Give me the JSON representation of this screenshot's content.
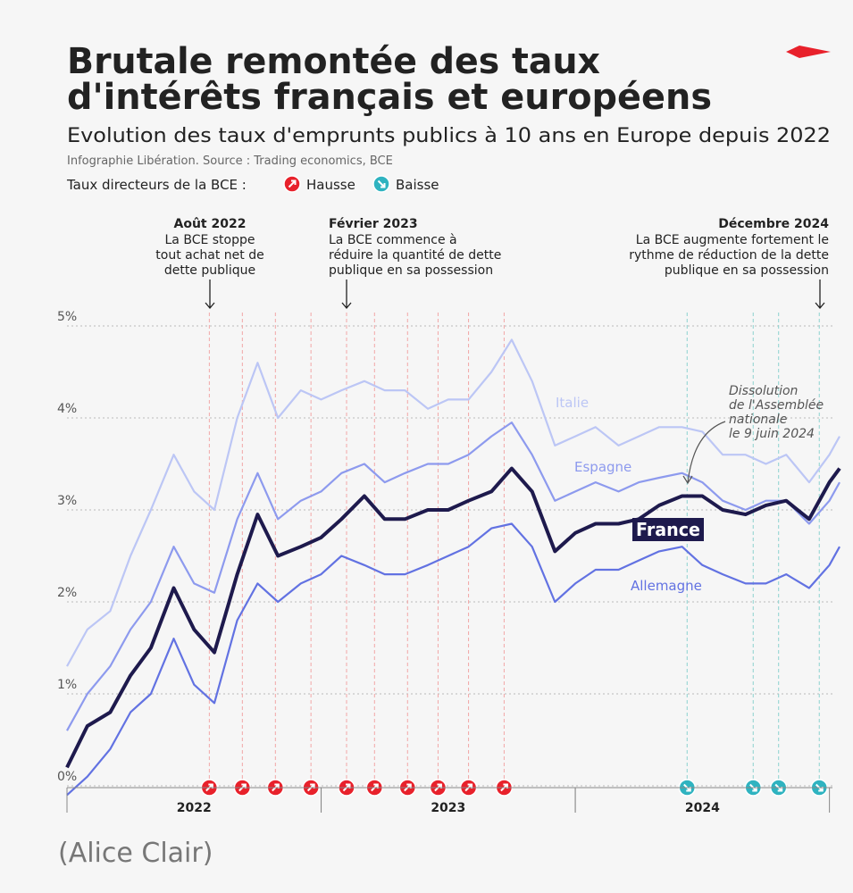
{
  "chart_data": {
    "type": "line",
    "title": [
      "Brutale remontée des taux",
      "d'intérêts français et européens"
    ],
    "subtitle": "Evolution des taux d'emprunts publics à 10 ans en Europe depuis 2022",
    "source": "Infographie Libération. Source : Trading economics, BCE",
    "rate_legend": {
      "label": "Taux directeurs de la BCE :",
      "hike": "Hausse",
      "cut": "Baisse",
      "hike_color": "#e8212b",
      "cut_color": "#2fb3c0"
    },
    "hikes": [
      2022.56,
      2022.69,
      2022.82,
      2022.96,
      2023.1,
      2023.21,
      2023.34,
      2023.46,
      2023.58,
      2023.72
    ],
    "cuts": [
      2024.44,
      2024.7,
      2024.8,
      2024.96
    ],
    "annotations": [
      {
        "title": "Août 2022",
        "lines": [
          "La BCE stoppe",
          "tout achat net de",
          "dette publique"
        ]
      },
      {
        "title": "Février 2023",
        "lines": [
          "La BCE commence à",
          "réduire la quantité de dette",
          "publique en sa possession"
        ]
      },
      {
        "title": "Décembre 2024",
        "lines": [
          "La BCE augmente fortement le",
          "rythme de réduction de la dette",
          "publique en sa possession"
        ]
      }
    ],
    "note": [
      "Dissolution",
      "de l'Assemblée",
      "nationale",
      "le 9 juin 2024"
    ],
    "credit": "(Alice Clair)",
    "x": [
      2022,
      2022.08,
      2022.17,
      2022.25,
      2022.33,
      2022.42,
      2022.5,
      2022.58,
      2022.67,
      2022.75,
      2022.83,
      2022.92,
      2023,
      2023.08,
      2023.17,
      2023.25,
      2023.33,
      2023.42,
      2023.5,
      2023.58,
      2023.67,
      2023.75,
      2023.83,
      2023.92,
      2024,
      2024.08,
      2024.17,
      2024.25,
      2024.33,
      2024.42,
      2024.5,
      2024.58,
      2024.67,
      2024.75,
      2024.83,
      2024.92,
      2025,
      2025.04
    ],
    "series": [
      {
        "name": "Italie",
        "color": "#bcc6f5",
        "values": [
          1.3,
          1.7,
          1.9,
          2.5,
          3.0,
          3.6,
          3.2,
          3.0,
          4.0,
          4.6,
          4.0,
          4.3,
          4.2,
          4.3,
          4.4,
          4.3,
          4.3,
          4.1,
          4.2,
          4.2,
          4.5,
          4.85,
          4.4,
          3.7,
          3.8,
          3.9,
          3.7,
          3.8,
          3.9,
          3.9,
          3.85,
          3.6,
          3.6,
          3.5,
          3.6,
          3.3,
          3.6,
          3.8
        ]
      },
      {
        "name": "Espagne",
        "color": "#8d9aee",
        "values": [
          0.6,
          1.0,
          1.3,
          1.7,
          2.0,
          2.6,
          2.2,
          2.1,
          2.9,
          3.4,
          2.9,
          3.1,
          3.2,
          3.4,
          3.5,
          3.3,
          3.4,
          3.5,
          3.5,
          3.6,
          3.8,
          3.95,
          3.6,
          3.1,
          3.2,
          3.3,
          3.2,
          3.3,
          3.35,
          3.4,
          3.3,
          3.1,
          3.0,
          3.1,
          3.1,
          2.85,
          3.1,
          3.3
        ]
      },
      {
        "name": "France",
        "color": "#1e1a4d",
        "values": [
          0.2,
          0.65,
          0.8,
          1.2,
          1.5,
          2.15,
          1.7,
          1.45,
          2.3,
          2.95,
          2.5,
          2.6,
          2.7,
          2.9,
          3.15,
          2.9,
          2.9,
          3.0,
          3.0,
          3.1,
          3.2,
          3.45,
          3.2,
          2.55,
          2.75,
          2.85,
          2.85,
          2.9,
          3.05,
          3.15,
          3.15,
          3.0,
          2.95,
          3.05,
          3.1,
          2.9,
          3.3,
          3.45
        ]
      },
      {
        "name": "Allemagne",
        "color": "#6272e2",
        "values": [
          -0.1,
          0.1,
          0.4,
          0.8,
          1.0,
          1.6,
          1.1,
          0.9,
          1.8,
          2.2,
          2.0,
          2.2,
          2.3,
          2.5,
          2.4,
          2.3,
          2.3,
          2.4,
          2.5,
          2.6,
          2.8,
          2.85,
          2.6,
          2.0,
          2.2,
          2.35,
          2.35,
          2.45,
          2.55,
          2.6,
          2.4,
          2.3,
          2.2,
          2.2,
          2.3,
          2.15,
          2.4,
          2.6
        ]
      }
    ],
    "xlim": [
      2022,
      2025.04
    ],
    "ylim": [
      0,
      5
    ],
    "xticks": [
      {
        "value": 2022.5,
        "label": "2022"
      },
      {
        "value": 2023.5,
        "label": "2023"
      },
      {
        "value": 2024.5,
        "label": "2024"
      }
    ],
    "yticks": [
      {
        "value": 0,
        "label": "0%"
      },
      {
        "value": 1,
        "label": "1%"
      },
      {
        "value": 2,
        "label": "2%"
      },
      {
        "value": 3,
        "label": "3%"
      },
      {
        "value": 4,
        "label": "4%"
      },
      {
        "value": 5,
        "label": "5%"
      }
    ],
    "grid": true
  }
}
